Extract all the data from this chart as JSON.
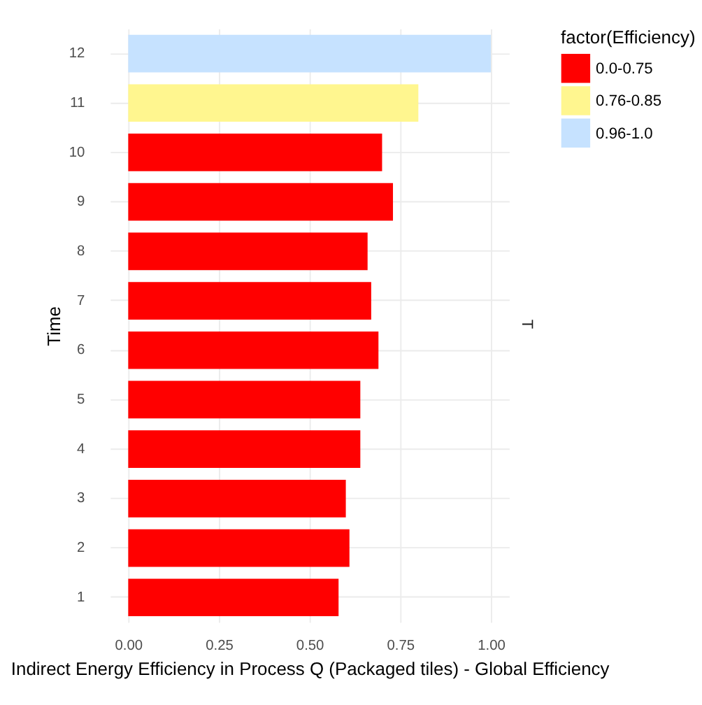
{
  "chart_data": {
    "type": "bar",
    "orientation": "horizontal",
    "xlabel": "Indirect Energy Efficiency in Process Q (Packaged tiles)  - Global Efficiency",
    "ylabel": "Time",
    "legend_title": "factor(Efficiency)",
    "annotations": [
      "T"
    ],
    "categories": [
      "12",
      "11",
      "10",
      "9",
      "8",
      "7",
      "6",
      "5",
      "4",
      "3",
      "2",
      "1"
    ],
    "series": [
      {
        "name": "0.0-0.75",
        "color": "#ff0000",
        "values": [
          null,
          null,
          0.7,
          0.73,
          0.66,
          0.67,
          0.69,
          0.64,
          0.64,
          0.6,
          0.61,
          0.58
        ]
      },
      {
        "name": "0.76-0.85",
        "color": "#fff68f",
        "values": [
          null,
          0.8,
          null,
          null,
          null,
          null,
          null,
          null,
          null,
          null,
          null,
          null
        ]
      },
      {
        "name": "0.96-1.0",
        "color": "#c6e2ff",
        "values": [
          1.0,
          null,
          null,
          null,
          null,
          null,
          null,
          null,
          null,
          null,
          null,
          null
        ]
      }
    ],
    "xlim": [
      -0.05,
      1.05
    ],
    "xticks": [
      {
        "value": 0,
        "label": "0.00"
      },
      {
        "value": 0.25,
        "label": "0.25"
      },
      {
        "value": 0.5,
        "label": "0.50"
      },
      {
        "value": 0.75,
        "label": "0.75"
      },
      {
        "value": 1,
        "label": "1.00"
      }
    ],
    "grid": true,
    "legend": "right"
  }
}
